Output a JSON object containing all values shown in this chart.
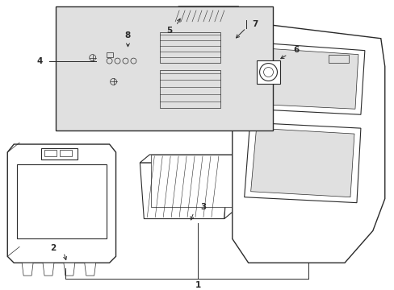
{
  "bg_color": "#ffffff",
  "line_color": "#2a2a2a",
  "inset_bg": "#e0e0e0",
  "fig_width": 4.89,
  "fig_height": 3.6,
  "dpi": 100,
  "lw": 0.8,
  "lw_thick": 1.0,
  "lw_thin": 0.5,
  "fs_label": 7.5
}
